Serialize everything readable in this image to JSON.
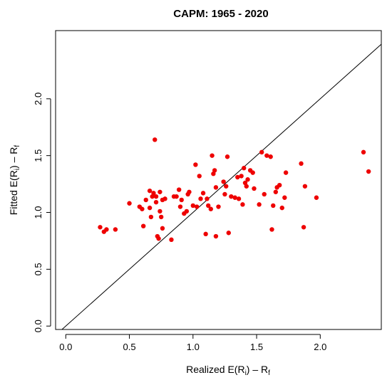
{
  "chart_data": {
    "type": "scatter",
    "title": "CAPM: 1965 - 2020",
    "xlabel": "Realized E(R",
    "xlabel_sub": "i",
    "xlabel_tail": ") – R",
    "xlabel_sub2": "f",
    "ylabel": "Fitted E(R",
    "ylabel_sub": "i",
    "ylabel_tail": ") – R",
    "ylabel_sub2": "f",
    "xlim": [
      -0.08,
      2.48
    ],
    "ylim": [
      -0.03,
      2.6
    ],
    "x_ticks": [
      "0.0",
      "0.5",
      "1.0",
      "1.5",
      "2.0"
    ],
    "y_ticks": [
      "0.0",
      "0.5",
      "1.0",
      "1.5",
      "2.0"
    ],
    "x_tick_values": [
      0,
      0.5,
      1.0,
      1.5,
      2.0
    ],
    "y_tick_values": [
      0,
      0.5,
      1.0,
      1.5,
      2.0
    ],
    "reference_line": "45-degree (y = x)",
    "point_color": "#ee0000",
    "points": [
      {
        "x": 0.27,
        "y": 0.87
      },
      {
        "x": 0.3,
        "y": 0.83
      },
      {
        "x": 0.32,
        "y": 0.85
      },
      {
        "x": 0.39,
        "y": 0.85
      },
      {
        "x": 0.5,
        "y": 1.08
      },
      {
        "x": 0.58,
        "y": 1.05
      },
      {
        "x": 0.6,
        "y": 1.03
      },
      {
        "x": 0.61,
        "y": 0.88
      },
      {
        "x": 0.63,
        "y": 1.11
      },
      {
        "x": 0.66,
        "y": 1.19
      },
      {
        "x": 0.66,
        "y": 1.04
      },
      {
        "x": 0.67,
        "y": 0.96
      },
      {
        "x": 0.68,
        "y": 1.14
      },
      {
        "x": 0.69,
        "y": 1.17
      },
      {
        "x": 0.7,
        "y": 1.64
      },
      {
        "x": 0.71,
        "y": 1.14
      },
      {
        "x": 0.71,
        "y": 1.09
      },
      {
        "x": 0.72,
        "y": 0.79
      },
      {
        "x": 0.73,
        "y": 0.77
      },
      {
        "x": 0.74,
        "y": 1.18
      },
      {
        "x": 0.74,
        "y": 1.01
      },
      {
        "x": 0.75,
        "y": 0.96
      },
      {
        "x": 0.76,
        "y": 1.11
      },
      {
        "x": 0.76,
        "y": 0.86
      },
      {
        "x": 0.78,
        "y": 1.12
      },
      {
        "x": 0.83,
        "y": 0.76
      },
      {
        "x": 0.85,
        "y": 1.14
      },
      {
        "x": 0.87,
        "y": 1.14
      },
      {
        "x": 0.89,
        "y": 1.2
      },
      {
        "x": 0.9,
        "y": 1.05
      },
      {
        "x": 0.91,
        "y": 1.11
      },
      {
        "x": 0.93,
        "y": 0.99
      },
      {
        "x": 0.95,
        "y": 1.01
      },
      {
        "x": 0.96,
        "y": 1.16
      },
      {
        "x": 0.97,
        "y": 1.18
      },
      {
        "x": 1.0,
        "y": 1.06
      },
      {
        "x": 1.02,
        "y": 1.42
      },
      {
        "x": 1.03,
        "y": 1.05
      },
      {
        "x": 1.05,
        "y": 1.32
      },
      {
        "x": 1.06,
        "y": 1.12
      },
      {
        "x": 1.08,
        "y": 1.17
      },
      {
        "x": 1.1,
        "y": 0.81
      },
      {
        "x": 1.11,
        "y": 1.12
      },
      {
        "x": 1.12,
        "y": 1.06
      },
      {
        "x": 1.14,
        "y": 1.03
      },
      {
        "x": 1.15,
        "y": 1.5
      },
      {
        "x": 1.16,
        "y": 1.34
      },
      {
        "x": 1.17,
        "y": 1.37
      },
      {
        "x": 1.18,
        "y": 1.22
      },
      {
        "x": 1.18,
        "y": 0.79
      },
      {
        "x": 1.2,
        "y": 1.05
      },
      {
        "x": 1.24,
        "y": 1.27
      },
      {
        "x": 1.25,
        "y": 1.16
      },
      {
        "x": 1.26,
        "y": 1.23
      },
      {
        "x": 1.27,
        "y": 1.49
      },
      {
        "x": 1.28,
        "y": 0.82
      },
      {
        "x": 1.3,
        "y": 1.14
      },
      {
        "x": 1.33,
        "y": 1.13
      },
      {
        "x": 1.35,
        "y": 1.31
      },
      {
        "x": 1.36,
        "y": 1.12
      },
      {
        "x": 1.38,
        "y": 1.32
      },
      {
        "x": 1.39,
        "y": 1.07
      },
      {
        "x": 1.4,
        "y": 1.39
      },
      {
        "x": 1.41,
        "y": 1.26
      },
      {
        "x": 1.42,
        "y": 1.23
      },
      {
        "x": 1.43,
        "y": 1.29
      },
      {
        "x": 1.45,
        "y": 1.37
      },
      {
        "x": 1.47,
        "y": 1.35
      },
      {
        "x": 1.48,
        "y": 1.21
      },
      {
        "x": 1.52,
        "y": 1.07
      },
      {
        "x": 1.54,
        "y": 1.53
      },
      {
        "x": 1.56,
        "y": 1.16
      },
      {
        "x": 1.58,
        "y": 1.5
      },
      {
        "x": 1.61,
        "y": 1.49
      },
      {
        "x": 1.62,
        "y": 0.85
      },
      {
        "x": 1.63,
        "y": 1.06
      },
      {
        "x": 1.65,
        "y": 1.18
      },
      {
        "x": 1.66,
        "y": 1.22
      },
      {
        "x": 1.68,
        "y": 1.24
      },
      {
        "x": 1.7,
        "y": 1.04
      },
      {
        "x": 1.72,
        "y": 1.13
      },
      {
        "x": 1.73,
        "y": 1.35
      },
      {
        "x": 1.85,
        "y": 1.43
      },
      {
        "x": 1.87,
        "y": 0.87
      },
      {
        "x": 1.88,
        "y": 1.23
      },
      {
        "x": 1.97,
        "y": 1.13
      },
      {
        "x": 2.34,
        "y": 1.53
      },
      {
        "x": 2.38,
        "y": 1.36
      }
    ]
  }
}
